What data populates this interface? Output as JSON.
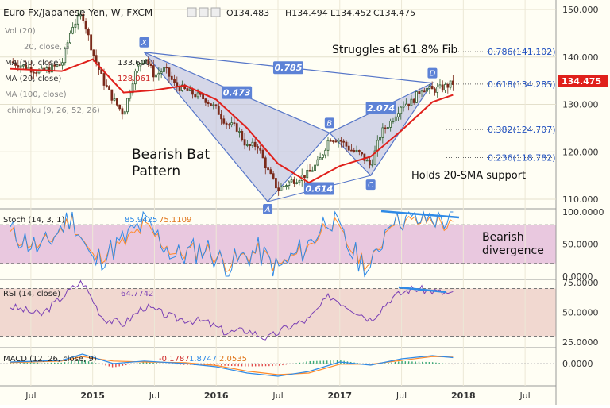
{
  "colors": {
    "background": "#fffef4",
    "up_candle": "#2f5d2f",
    "down_candle": "#7a2a1a",
    "sma": "#e0201b",
    "harmonic_stroke": "#5575c8",
    "harmonic_fill": "#b9bde0",
    "stoch_k": "#2f8ae6",
    "stoch_d": "#ff8a2a",
    "stoch_band": "#e9c8df",
    "rsi_line": "#7a3fb5",
    "rsi_band": "#f1d8d0",
    "macd_line": "#2f8ae6",
    "macd_signal": "#ff8a2a",
    "price_tag": "#e0201b",
    "divergence": "#2f8ae6",
    "label_box": "#5d82d6"
  },
  "header": {
    "symbol_title": "Euro Fx/Japanese Yen, W, FXCM",
    "o": "O134.483",
    "h": "H134.494",
    "l": "L134.452",
    "c": "C134.475"
  },
  "overlay_labels": [
    "Vol (20)",
    "20, close, 2",
    "MA (50, close)",
    "MA (20, close)",
    "MA (100, close)",
    "Ichimoku (9, 26, 52, 26)"
  ],
  "overlay_values": [
    "133.600",
    "128.061"
  ],
  "price_tag": "134.475",
  "price_axis": {
    "ticks": [
      "150.000",
      "140.000",
      "130.000",
      "120.000",
      "110.000"
    ]
  },
  "annotations": {
    "title_note": "Struggles at 61.8% Fib",
    "pattern_line1": "Bearish Bat",
    "pattern_line2": "Pattern",
    "support_note": "Holds 20-SMA support",
    "divergence_line1": "Bearish",
    "divergence_line2": "divergence"
  },
  "harmonic": {
    "points": {
      "X": "X",
      "A": "A",
      "B": "B",
      "C": "C",
      "D": "D"
    },
    "ratios": {
      "XD": "0.785",
      "XAB": "0.473",
      "ABC": "0.614",
      "BCD": "2.074"
    }
  },
  "fib_levels": [
    {
      "label": "0.786(141.102)",
      "price": 141.102
    },
    {
      "label": "0.618(134.285)",
      "price": 134.285
    },
    {
      "label": "0.382(124.707)",
      "price": 124.707
    },
    {
      "label": "0.236(118.782)",
      "price": 118.782
    }
  ],
  "stoch": {
    "legend": "Stoch (14, 3, 1)",
    "k_value": "85.9425",
    "d_value": "75.1109",
    "ticks": [
      "100.0000",
      "50.0000",
      "0.0000"
    ]
  },
  "rsi": {
    "legend": "RSI (14, close)",
    "value": "64.7742",
    "ticks": [
      "75.0000",
      "50.0000",
      "25.0000"
    ]
  },
  "macd": {
    "legend": "MACD (12, 26, close, 9)",
    "hist": "-0.1787",
    "macd_value": "1.8747",
    "signal_value": "2.0535",
    "ticks": [
      "0.0000"
    ]
  },
  "time_axis": [
    "Jul",
    "2015",
    "Jul",
    "2016",
    "Jul",
    "2017",
    "Jul",
    "2018",
    "Jul"
  ],
  "chart_data": {
    "type": "candlestick",
    "title": "Euro Fx/Japanese Yen, W, FXCM",
    "ylim": [
      105,
      152
    ],
    "y_ticks": [
      110,
      120,
      130,
      140,
      150
    ],
    "x_ticks": [
      "Jul",
      "2015",
      "Jul",
      "2016",
      "Jul",
      "2017",
      "Jul",
      "2018",
      "Jul"
    ],
    "price_path": [
      [
        "2014-05",
        139.0
      ],
      [
        "2014-07",
        137.5
      ],
      [
        "2014-08",
        136.8
      ],
      [
        "2014-10",
        138.5
      ],
      [
        "2014-11",
        146.5
      ],
      [
        "2014-12",
        149.0
      ],
      [
        "2015-01",
        141.0
      ],
      [
        "2015-02",
        135.0
      ],
      [
        "2015-03",
        131.0
      ],
      [
        "2015-04",
        128.0
      ],
      [
        "2015-05",
        136.0
      ],
      [
        "2015-06",
        140.5
      ],
      [
        "2015-07",
        136.0
      ],
      [
        "2015-08",
        137.5
      ],
      [
        "2015-09",
        134.0
      ],
      [
        "2015-10",
        133.0
      ],
      [
        "2015-11",
        132.0
      ],
      [
        "2015-12",
        131.0
      ],
      [
        "2016-01",
        129.0
      ],
      [
        "2016-02",
        126.0
      ],
      [
        "2016-03",
        125.0
      ],
      [
        "2016-04",
        121.0
      ],
      [
        "2016-05",
        121.5
      ],
      [
        "2016-06",
        116.0
      ],
      [
        "2016-07",
        112.0
      ],
      [
        "2016-08",
        113.5
      ],
      [
        "2016-09",
        114.5
      ],
      [
        "2016-10",
        115.5
      ],
      [
        "2016-11",
        118.0
      ],
      [
        "2016-12",
        123.0
      ],
      [
        "2017-01",
        122.5
      ],
      [
        "2017-02",
        120.5
      ],
      [
        "2017-03",
        119.5
      ],
      [
        "2017-04",
        117.0
      ],
      [
        "2017-05",
        124.0
      ],
      [
        "2017-06",
        126.5
      ],
      [
        "2017-07",
        130.0
      ],
      [
        "2017-08",
        130.5
      ],
      [
        "2017-09",
        133.5
      ],
      [
        "2017-10",
        133.0
      ],
      [
        "2017-11",
        133.5
      ],
      [
        "2017-12",
        134.475
      ]
    ],
    "harmonic_points": [
      {
        "name": "X",
        "date": "2015-06",
        "price": 141.0
      },
      {
        "name": "A",
        "date": "2016-06",
        "price": 109.5
      },
      {
        "name": "B",
        "date": "2016-12",
        "price": 124.0
      },
      {
        "name": "C",
        "date": "2017-04",
        "price": 115.0
      },
      {
        "name": "D",
        "date": "2017-10",
        "price": 134.5
      }
    ],
    "sma20_path": [
      [
        "2014-05",
        137.5
      ],
      [
        "2014-10",
        137.0
      ],
      [
        "2015-01",
        139.5
      ],
      [
        "2015-04",
        132.5
      ],
      [
        "2015-07",
        133.0
      ],
      [
        "2015-10",
        134.0
      ],
      [
        "2016-01",
        131.0
      ],
      [
        "2016-04",
        125.0
      ],
      [
        "2016-07",
        117.5
      ],
      [
        "2016-10",
        113.5
      ],
      [
        "2017-01",
        117.0
      ],
      [
        "2017-04",
        119.0
      ],
      [
        "2017-07",
        124.5
      ],
      [
        "2017-10",
        130.5
      ],
      [
        "2017-12",
        132.0
      ]
    ],
    "stoch_k": [
      [
        "2014-05",
        70
      ],
      [
        "2014-08",
        40
      ],
      [
        "2014-11",
        95
      ],
      [
        "2015-01",
        20
      ],
      [
        "2015-04",
        55
      ],
      [
        "2015-06",
        85
      ],
      [
        "2015-09",
        30
      ],
      [
        "2015-12",
        45
      ],
      [
        "2016-02",
        15
      ],
      [
        "2016-05",
        40
      ],
      [
        "2016-07",
        10
      ],
      [
        "2016-10",
        50
      ],
      [
        "2016-12",
        95
      ],
      [
        "2017-02",
        40
      ],
      [
        "2017-04",
        8
      ],
      [
        "2017-06",
        98
      ],
      [
        "2017-08",
        85
      ],
      [
        "2017-10",
        92
      ],
      [
        "2017-12",
        86
      ]
    ],
    "stoch_d": [
      [
        "2014-05",
        65
      ],
      [
        "2014-08",
        45
      ],
      [
        "2014-11",
        88
      ],
      [
        "2015-01",
        28
      ],
      [
        "2015-04",
        50
      ],
      [
        "2015-06",
        78
      ],
      [
        "2015-09",
        35
      ],
      [
        "2015-12",
        42
      ],
      [
        "2016-02",
        20
      ],
      [
        "2016-05",
        38
      ],
      [
        "2016-07",
        15
      ],
      [
        "2016-10",
        45
      ],
      [
        "2016-12",
        88
      ],
      [
        "2017-02",
        45
      ],
      [
        "2017-04",
        15
      ],
      [
        "2017-06",
        90
      ],
      [
        "2017-08",
        83
      ],
      [
        "2017-10",
        88
      ],
      [
        "2017-12",
        75
      ]
    ],
    "rsi": [
      [
        "2014-05",
        55
      ],
      [
        "2014-08",
        48
      ],
      [
        "2014-11",
        70
      ],
      [
        "2014-12",
        76
      ],
      [
        "2015-02",
        45
      ],
      [
        "2015-04",
        40
      ],
      [
        "2015-06",
        55
      ],
      [
        "2015-09",
        45
      ],
      [
        "2015-12",
        42
      ],
      [
        "2016-02",
        33
      ],
      [
        "2016-04",
        35
      ],
      [
        "2016-06",
        28
      ],
      [
        "2016-08",
        38
      ],
      [
        "2016-10",
        44
      ],
      [
        "2016-12",
        64
      ],
      [
        "2017-02",
        54
      ],
      [
        "2017-04",
        44
      ],
      [
        "2017-06",
        62
      ],
      [
        "2017-08",
        70
      ],
      [
        "2017-10",
        68
      ],
      [
        "2017-12",
        65
      ]
    ],
    "macd": [
      [
        "2014-05",
        0.5
      ],
      [
        "2014-10",
        1.0
      ],
      [
        "2014-12",
        3.0
      ],
      [
        "2015-03",
        0.0
      ],
      [
        "2015-06",
        0.8
      ],
      [
        "2015-10",
        0.0
      ],
      [
        "2016-01",
        -1.0
      ],
      [
        "2016-04",
        -3.0
      ],
      [
        "2016-07",
        -4.0
      ],
      [
        "2016-10",
        -2.5
      ],
      [
        "2017-01",
        0.5
      ],
      [
        "2017-04",
        -0.5
      ],
      [
        "2017-07",
        1.5
      ],
      [
        "2017-10",
        2.5
      ],
      [
        "2017-12",
        1.87
      ]
    ],
    "macd_signal": [
      [
        "2014-05",
        0.3
      ],
      [
        "2014-10",
        0.8
      ],
      [
        "2014-12",
        2.2
      ],
      [
        "2015-03",
        0.8
      ],
      [
        "2015-06",
        0.5
      ],
      [
        "2015-10",
        0.3
      ],
      [
        "2016-01",
        -0.6
      ],
      [
        "2016-04",
        -2.4
      ],
      [
        "2016-07",
        -3.5
      ],
      [
        "2016-10",
        -3.0
      ],
      [
        "2017-01",
        -0.2
      ],
      [
        "2017-04",
        -0.2
      ],
      [
        "2017-07",
        1.0
      ],
      [
        "2017-10",
        2.2
      ],
      [
        "2017-12",
        2.05
      ]
    ]
  }
}
